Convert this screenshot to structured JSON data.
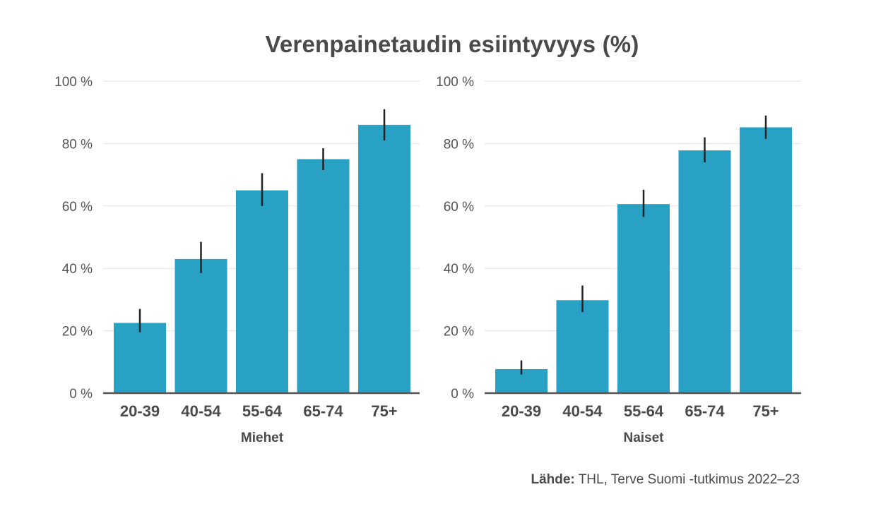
{
  "chart_data": {
    "type": "bar",
    "title": "Verenpainetaudin esiintyvyys (%)",
    "ylim": [
      0,
      100
    ],
    "yticks": [
      0,
      20,
      40,
      60,
      80,
      100
    ],
    "ytick_suffix": " %",
    "categories": [
      "20-39",
      "40-54",
      "55-64",
      "65-74",
      "75+"
    ],
    "panels": [
      {
        "name": "Miehet",
        "values": [
          22.5,
          43,
          65,
          75,
          86
        ],
        "ci_low": [
          19.5,
          38.5,
          60,
          71.5,
          81
        ],
        "ci_high": [
          27,
          48.5,
          70.5,
          78.5,
          91
        ]
      },
      {
        "name": "Naiset",
        "values": [
          7.7,
          29.8,
          60.6,
          77.8,
          85.2
        ],
        "ci_low": [
          6,
          26,
          56.5,
          74,
          81.5
        ],
        "ci_high": [
          10.5,
          34.5,
          65.2,
          82,
          89
        ]
      }
    ],
    "bar_color": "#28a1c4",
    "error_bar_color": "#222222",
    "grid": true
  },
  "source": {
    "label": "Lähde:",
    "text": " THL, Terve Suomi -tutkimus 2022–23"
  }
}
